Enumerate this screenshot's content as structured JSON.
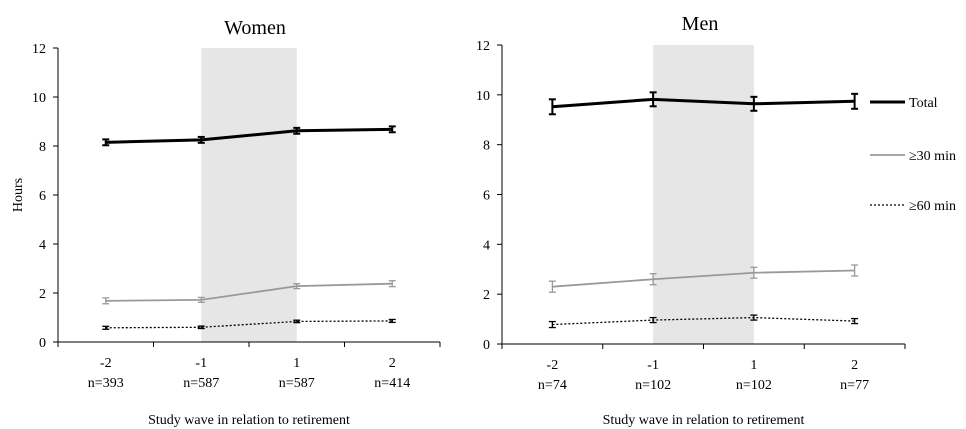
{
  "chart_data": [
    {
      "type": "line",
      "title": "Women",
      "ylabel": "Hours",
      "xlabel": "Study wave in relation to retirement",
      "categories": [
        "-2",
        "-1",
        "1",
        "2"
      ],
      "n_labels": [
        "n=393",
        "n=587",
        "n=587",
        "n=414"
      ],
      "ylim": [
        0,
        12
      ],
      "yticks": [
        "0",
        "2",
        "4",
        "6",
        "8",
        "10",
        "12"
      ],
      "shaded_region": [
        "-1",
        "1"
      ],
      "series": [
        {
          "name": "Total",
          "values": [
            8.15,
            8.25,
            8.62,
            8.68
          ],
          "errors": [
            0.12,
            0.12,
            0.12,
            0.12
          ],
          "color": "#000000"
        },
        {
          "name": "≥30 min",
          "values": [
            1.68,
            1.72,
            2.28,
            2.38
          ],
          "errors": [
            0.12,
            0.1,
            0.1,
            0.12
          ],
          "color": "#999999"
        },
        {
          "name": "≥60 min",
          "values": [
            0.58,
            0.6,
            0.84,
            0.86
          ],
          "errors": [
            0.06,
            0.05,
            0.05,
            0.06
          ],
          "color": "#000000"
        }
      ]
    },
    {
      "type": "line",
      "title": "Men",
      "ylabel": "",
      "xlabel": "Study wave in relation to retirement",
      "categories": [
        "-2",
        "-1",
        "1",
        "2"
      ],
      "n_labels": [
        "n=74",
        "n=102",
        "n=102",
        "n=77"
      ],
      "ylim": [
        0,
        12
      ],
      "yticks": [
        "0",
        "2",
        "4",
        "6",
        "8",
        "10",
        "12"
      ],
      "shaded_region": [
        "-1",
        "1"
      ],
      "series": [
        {
          "name": "Total",
          "values": [
            9.52,
            9.82,
            9.64,
            9.74
          ],
          "errors": [
            0.3,
            0.28,
            0.28,
            0.3
          ],
          "color": "#000000"
        },
        {
          "name": "≥30 min",
          "values": [
            2.3,
            2.6,
            2.86,
            2.95
          ],
          "errors": [
            0.22,
            0.22,
            0.22,
            0.22
          ],
          "color": "#999999"
        },
        {
          "name": "≥60 min",
          "values": [
            0.78,
            0.96,
            1.06,
            0.92
          ],
          "errors": [
            0.12,
            0.1,
            0.1,
            0.1
          ],
          "color": "#000000"
        }
      ]
    }
  ],
  "legend": {
    "placement": "right",
    "items": [
      {
        "label": "Total",
        "style": "solid",
        "color": "#000000"
      },
      {
        "label": "≥30 min",
        "style": "solid",
        "color": "#999999"
      },
      {
        "label": "≥60 min",
        "style": "dotted",
        "color": "#000000"
      }
    ]
  }
}
